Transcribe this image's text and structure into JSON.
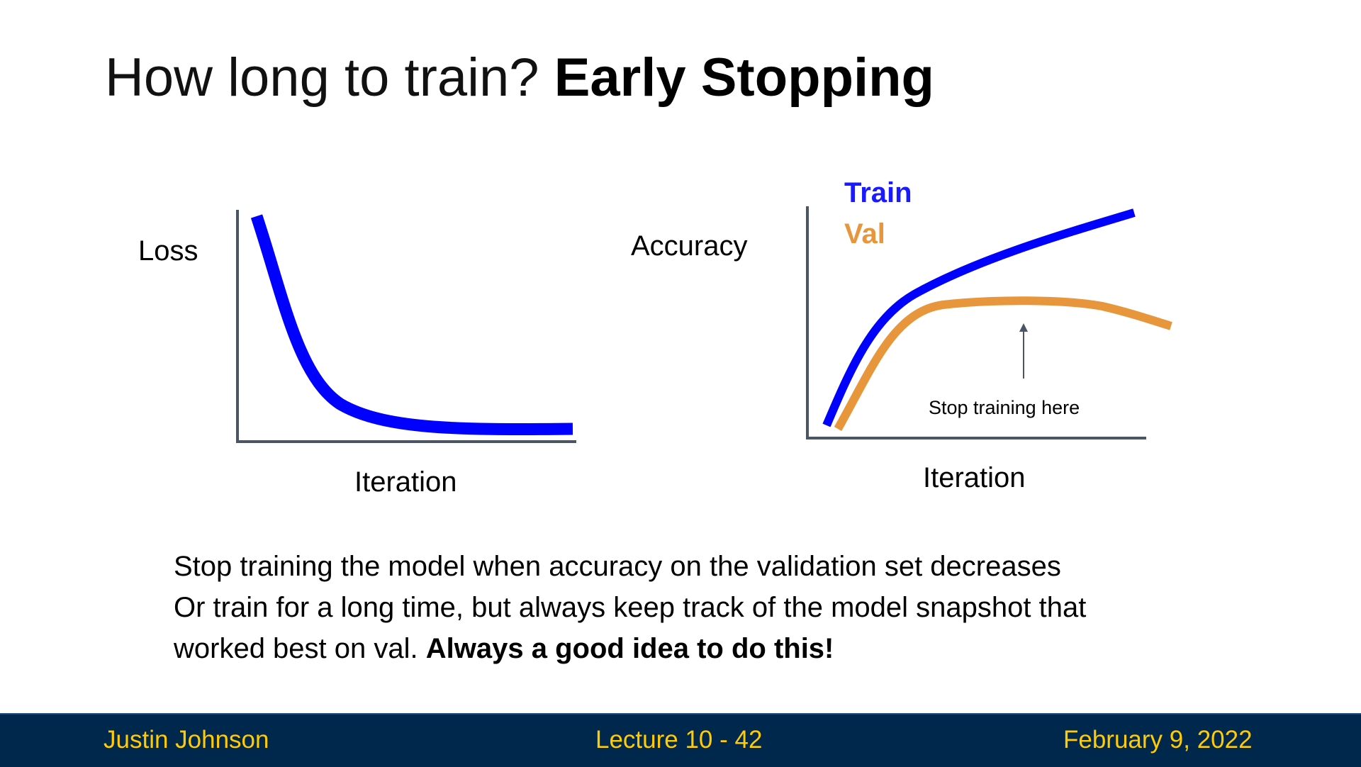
{
  "slide": {
    "title_main": "How long to train?",
    "title_bold": "Early Stopping"
  },
  "loss_plot": {
    "ylabel": "Loss",
    "xlabel": "Iteration",
    "line_color": "#0000ff"
  },
  "accuracy_plot": {
    "ylabel": "Accuracy",
    "xlabel": "Iteration",
    "legend": {
      "train": "Train",
      "val": "Val"
    },
    "train_color": "#0000ff",
    "val_color": "#e8963c",
    "annotation": "Stop training here"
  },
  "body": {
    "line1": "Stop training the model when accuracy on the validation set decreases",
    "line2": "Or train for a long time, but always keep track of the model snapshot that",
    "line3_plain": "worked best on val.",
    "line3_bold": "Always a good idea to do this!"
  },
  "footer": {
    "author": "Justin Johnson",
    "lecture": "Lecture 10 - 42",
    "date": "February 9, 2022",
    "background": "#00274c",
    "text_color": "#ffcb05"
  }
}
